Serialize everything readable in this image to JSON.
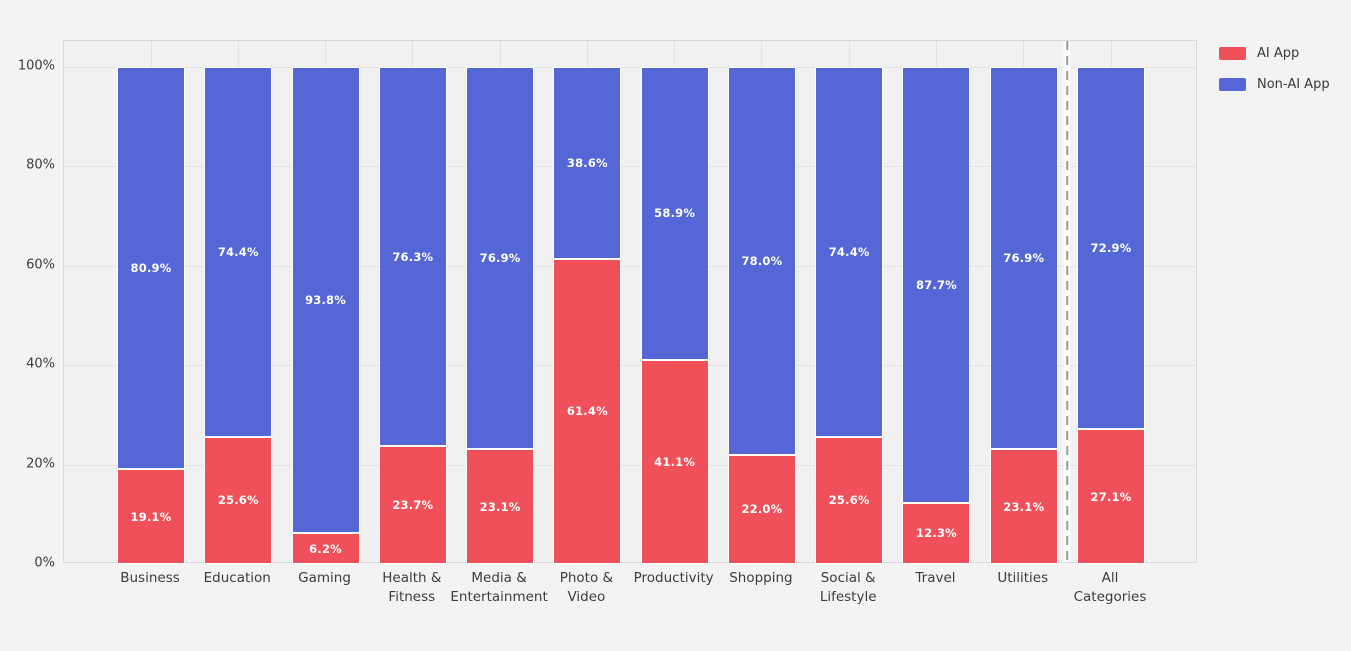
{
  "chart_data": {
    "type": "bar",
    "stacked": true,
    "orientation": "vertical",
    "title": "",
    "xlabel": "",
    "ylabel": "",
    "categories": [
      "Business",
      "Education",
      "Gaming",
      "Health &\nFitness",
      "Media &\nEntertainment",
      "Photo &\nVideo",
      "Productivity",
      "Shopping",
      "Social &\nLifestyle",
      "Travel",
      "Utilities",
      "All\nCategories"
    ],
    "series": [
      {
        "name": "AI App",
        "color": "#ef5059",
        "values": [
          19.1,
          25.6,
          6.2,
          23.7,
          23.1,
          61.4,
          41.1,
          22.0,
          25.6,
          12.3,
          23.1,
          27.1
        ]
      },
      {
        "name": "Non-AI App",
        "color": "#5567d6",
        "values": [
          80.9,
          74.4,
          93.8,
          76.3,
          76.9,
          38.6,
          58.9,
          78.0,
          74.4,
          87.7,
          76.9,
          72.9
        ]
      }
    ],
    "value_label_suffix": "%",
    "y_ticks": [
      {
        "value": 0,
        "label": "0%"
      },
      {
        "value": 20,
        "label": "20%"
      },
      {
        "value": 40,
        "label": "40%"
      },
      {
        "value": 60,
        "label": "60%"
      },
      {
        "value": 80,
        "label": "80%"
      },
      {
        "value": 100,
        "label": "100%"
      }
    ],
    "ylim": [
      0,
      105
    ],
    "grid": true,
    "legend_position": "outside-top-right",
    "separator_before_category": "All\nCategories"
  },
  "legend": {
    "items": [
      {
        "label": "AI App",
        "color": "#ef5059"
      },
      {
        "label": "Non-AI App",
        "color": "#5567d6"
      }
    ]
  },
  "colors": {
    "page_background": "#f3f3f3",
    "plot_background": "#f1f1f1",
    "gridline": "#e2e2e2",
    "plot_border": "#d9d9d9",
    "separator_dash": "#9a9a9a",
    "bar_edge": "#ffffff",
    "tick_text": "#3c3c3c",
    "value_label_text": "#ffffff"
  }
}
